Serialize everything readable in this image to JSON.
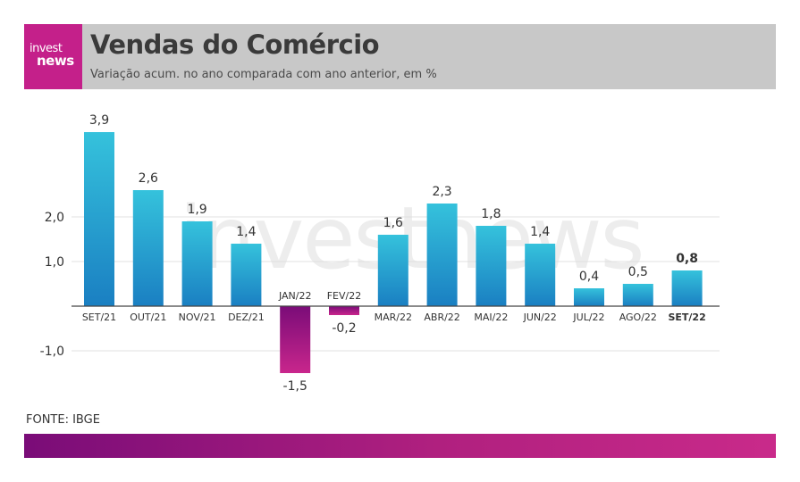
{
  "header": {
    "logo_line1": "invest",
    "logo_line2": "news",
    "title": "Vendas do Comércio",
    "subtitle": "Variação acum. no ano comparada com ano anterior, em %"
  },
  "source": "FONTE: IBGE",
  "watermark": "investnews",
  "colors": {
    "positive_top": "#35c2dc",
    "positive_bottom": "#1a7fc2",
    "negative_top": "#7a0c78",
    "negative_bottom": "#c9268c",
    "header_bg": "#c8c8c8",
    "logo_bg": "#c4208a"
  },
  "chart_data": {
    "type": "bar",
    "categories": [
      "SET/21",
      "OUT/21",
      "NOV/21",
      "DEZ/21",
      "JAN/22",
      "FEV/22",
      "MAR/22",
      "ABR/22",
      "MAI/22",
      "JUN/22",
      "JUL/22",
      "AGO/22",
      "SET/22"
    ],
    "values": [
      3.9,
      2.6,
      1.9,
      1.4,
      -1.5,
      -0.2,
      1.6,
      2.3,
      1.8,
      1.4,
      0.4,
      0.5,
      0.8
    ],
    "value_labels": [
      "3,9",
      "2,6",
      "1,9",
      "1,4",
      "-1,5",
      "-0,2",
      "1,6",
      "2,3",
      "1,8",
      "1,4",
      "0,4",
      "0,5",
      "0,8"
    ],
    "highlight_index": 12,
    "y_ticks": [
      -1,
      1,
      2
    ],
    "y_tick_labels": [
      "-1,0",
      "1,0",
      "2,0"
    ],
    "ylim": [
      -1.5,
      3.9
    ],
    "grid": true,
    "legend": "none"
  }
}
